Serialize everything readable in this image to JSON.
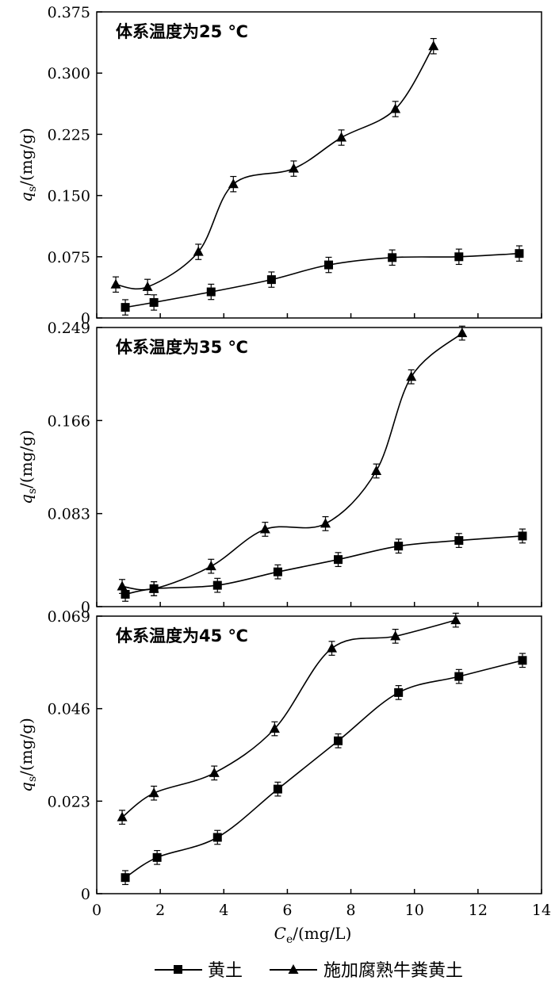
{
  "chart_data": [
    {
      "type": "line",
      "title": "体系温度为25 ℃",
      "ylabel": "q_s/(mg/g)",
      "xlabel": "",
      "xlim": [
        0,
        14
      ],
      "ylim": [
        0,
        0.375
      ],
      "yticks": [
        "0",
        "0.075",
        "0.150",
        "0.225",
        "0.300",
        "0.375"
      ],
      "series": [
        {
          "name": "黄土",
          "marker": "square",
          "x": [
            0.9,
            1.8,
            3.6,
            5.5,
            7.3,
            9.3,
            11.4,
            13.3
          ],
          "y": [
            0.013,
            0.019,
            0.032,
            0.047,
            0.065,
            0.074,
            0.075,
            0.079
          ]
        },
        {
          "name": "施加腐熟牛粪黄土",
          "marker": "triangle",
          "x": [
            0.6,
            1.6,
            3.2,
            4.3,
            6.2,
            7.7,
            9.4,
            10.6
          ],
          "y": [
            0.041,
            0.038,
            0.081,
            0.164,
            0.183,
            0.221,
            0.256,
            0.333
          ]
        }
      ]
    },
    {
      "type": "line",
      "title": "体系温度为35 ℃",
      "ylabel": "q_s/(mg/g)",
      "xlabel": "",
      "xlim": [
        0,
        14
      ],
      "ylim": [
        0,
        0.249
      ],
      "yticks": [
        "0",
        "0.083",
        "0.166",
        "0.249"
      ],
      "series": [
        {
          "name": "黄土",
          "marker": "square",
          "x": [
            0.9,
            1.8,
            3.8,
            5.7,
            7.6,
            9.5,
            11.4,
            13.4
          ],
          "y": [
            0.011,
            0.016,
            0.019,
            0.031,
            0.042,
            0.054,
            0.059,
            0.063
          ]
        },
        {
          "name": "施加腐熟牛粪黄土",
          "marker": "triangle",
          "x": [
            0.8,
            1.8,
            3.6,
            5.3,
            7.2,
            8.8,
            9.9,
            11.5
          ],
          "y": [
            0.018,
            0.016,
            0.036,
            0.069,
            0.074,
            0.121,
            0.205,
            0.244
          ]
        }
      ]
    },
    {
      "type": "line",
      "title": "体系温度为45 ℃",
      "ylabel": "q_s/(mg/g)",
      "xlabel": "C_e/(mg/L)",
      "xlim": [
        0,
        14
      ],
      "ylim": [
        0,
        0.069
      ],
      "xticks": [
        "0",
        "2",
        "4",
        "6",
        "8",
        "10",
        "12",
        "14"
      ],
      "yticks": [
        "0",
        "0.023",
        "0.046",
        "0.069"
      ],
      "series": [
        {
          "name": "黄土",
          "marker": "square",
          "x": [
            0.9,
            1.9,
            3.8,
            5.7,
            7.6,
            9.5,
            11.4,
            13.4
          ],
          "y": [
            0.004,
            0.009,
            0.014,
            0.026,
            0.038,
            0.05,
            0.054,
            0.058
          ]
        },
        {
          "name": "施加腐熟牛粪黄土",
          "marker": "triangle",
          "x": [
            0.8,
            1.8,
            3.7,
            5.6,
            7.4,
            9.4,
            11.3
          ],
          "y": [
            0.019,
            0.025,
            0.03,
            0.041,
            0.061,
            0.064,
            0.068
          ]
        }
      ]
    }
  ],
  "legend": {
    "items": [
      {
        "label": "黄土",
        "marker": "square"
      },
      {
        "label": "施加腐熟牛粪黄土",
        "marker": "triangle"
      }
    ]
  }
}
